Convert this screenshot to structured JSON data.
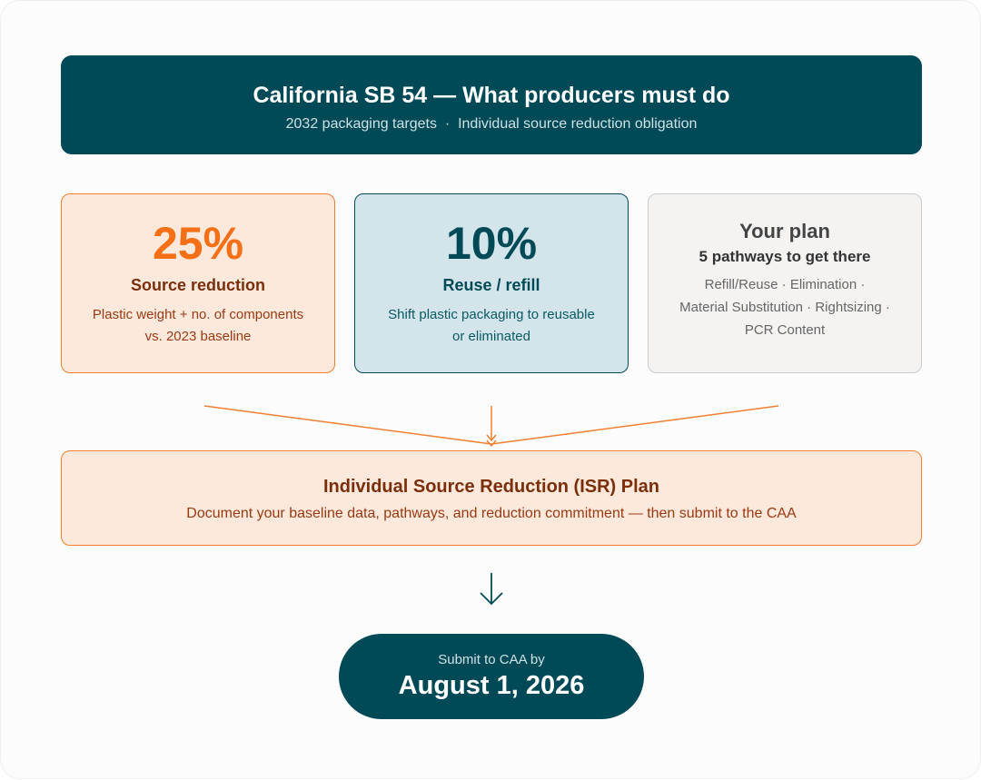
{
  "header": {
    "title": "California SB 54 — What producers must do",
    "subtitle": "2032 packaging targets  ·  Individual source reduction obligation"
  },
  "cards": [
    {
      "figure": "25%",
      "label": "Source reduction",
      "lines": [
        "Plastic weight + no. of components",
        "vs. 2023 baseline"
      ]
    },
    {
      "figure": "10%",
      "label": "Reuse / refill",
      "lines": [
        "Shift plastic packaging to reusable",
        "or eliminated"
      ]
    },
    {
      "figure": "Your plan",
      "label": "5 pathways to get there",
      "lines": [
        "Refill/Reuse · Elimination ·",
        "Material Substitution · Rightsizing ·",
        "PCR Content"
      ]
    }
  ],
  "plan": {
    "title": "Individual Source Reduction (ISR) Plan",
    "text": "Document your baseline data, pathways, and reduction commitment — then submit to the CAA"
  },
  "deadline": {
    "caption": "Submit to CAA by",
    "date": "August 1, 2026"
  }
}
